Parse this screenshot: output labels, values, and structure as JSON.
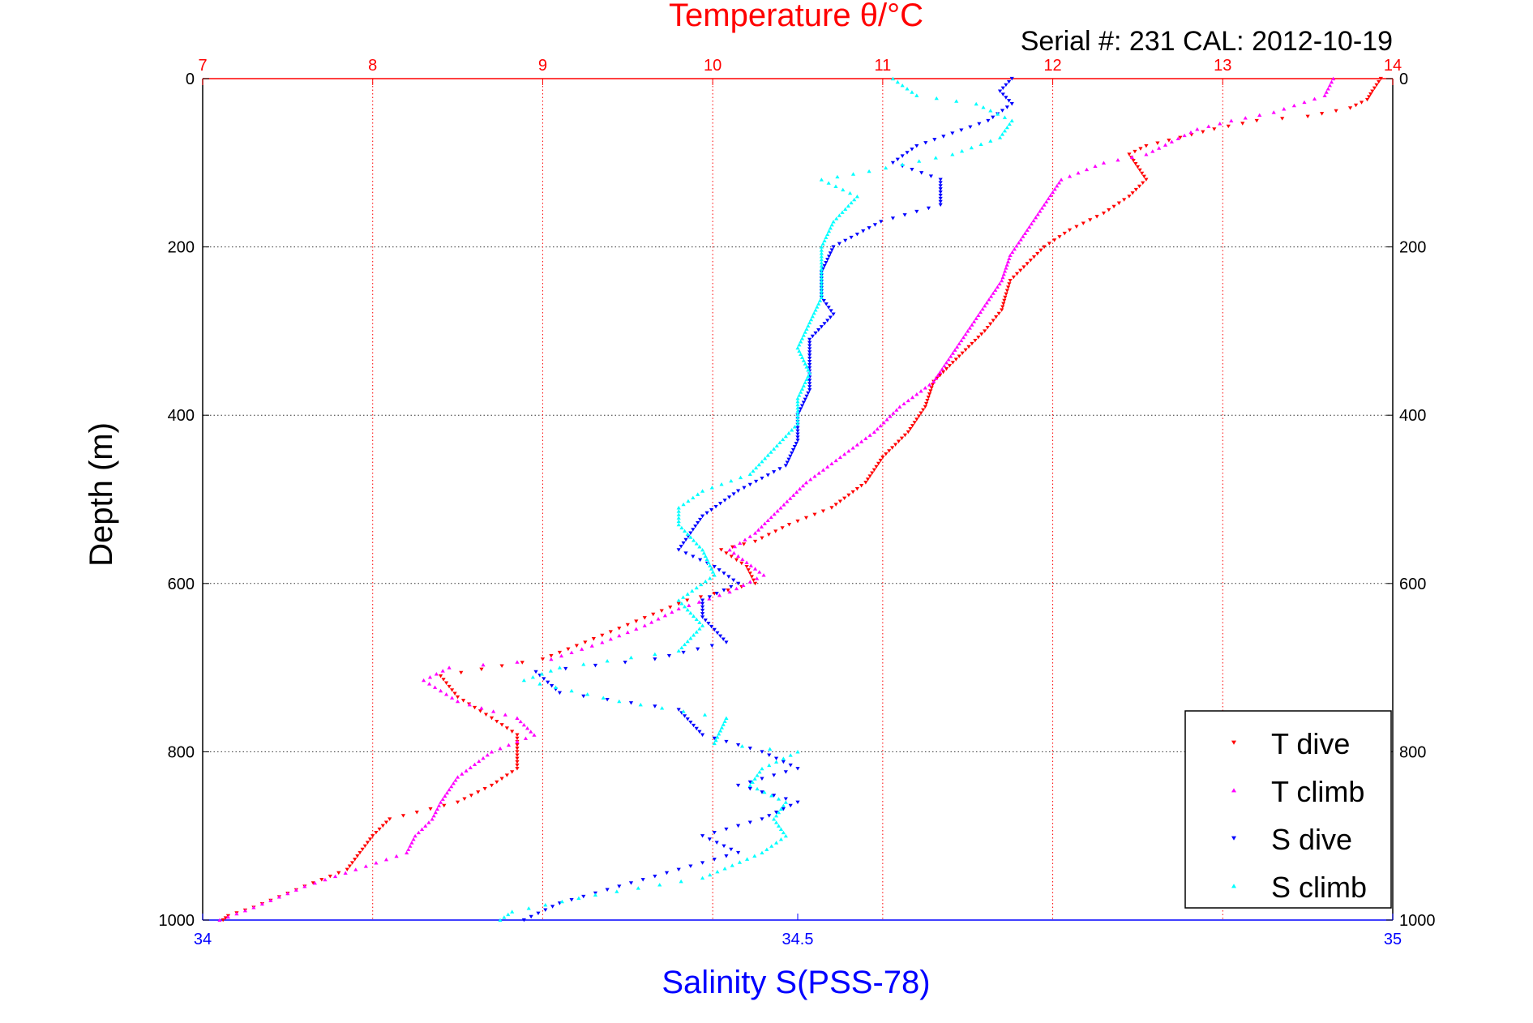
{
  "chart_data": {
    "type": "scatter",
    "title": "Temperature θ/°C",
    "subtitle": "Serial #: 231  CAL: 2012-10-19",
    "ylabel": "Depth (m)",
    "ylim": [
      0,
      1000
    ],
    "y_reversed": true,
    "y_ticks": [
      "0",
      "200",
      "400",
      "600",
      "800",
      "1000"
    ],
    "top_axis": {
      "label": "Temperature θ/°C",
      "lim": [
        7,
        14
      ],
      "ticks": [
        "7",
        "8",
        "9",
        "10",
        "11",
        "12",
        "13",
        "14"
      ],
      "color": "#ff0000"
    },
    "bottom_axis": {
      "label": "Salinity S(PSS-78)",
      "lim": [
        34,
        35
      ],
      "ticks": [
        "34",
        "34.5",
        "35"
      ],
      "color": "#0000ff"
    },
    "grid": true,
    "legend_position": "bottom-right",
    "series": [
      {
        "name": "T dive",
        "axis": "top",
        "color": "#ff0000",
        "marker": "triangle-down",
        "points": [
          [
            13.93,
            0
          ],
          [
            13.88,
            15
          ],
          [
            13.85,
            25
          ],
          [
            13.75,
            35
          ],
          [
            13.5,
            45
          ],
          [
            13.2,
            50
          ],
          [
            12.95,
            60
          ],
          [
            12.75,
            70
          ],
          [
            12.55,
            80
          ],
          [
            12.45,
            90
          ],
          [
            12.5,
            105
          ],
          [
            12.55,
            120
          ],
          [
            12.45,
            140
          ],
          [
            12.3,
            160
          ],
          [
            12.1,
            180
          ],
          [
            11.95,
            200
          ],
          [
            11.85,
            220
          ],
          [
            11.75,
            240
          ],
          [
            11.72,
            260
          ],
          [
            11.7,
            275
          ],
          [
            11.6,
            300
          ],
          [
            11.45,
            330
          ],
          [
            11.3,
            360
          ],
          [
            11.25,
            390
          ],
          [
            11.15,
            420
          ],
          [
            11.0,
            450
          ],
          [
            10.9,
            480
          ],
          [
            10.7,
            510
          ],
          [
            10.45,
            530
          ],
          [
            10.25,
            550
          ],
          [
            10.05,
            560
          ],
          [
            10.2,
            580
          ],
          [
            10.25,
            600
          ],
          [
            9.85,
            620
          ],
          [
            9.55,
            645
          ],
          [
            9.25,
            670
          ],
          [
            9.0,
            690
          ],
          [
            8.4,
            710
          ],
          [
            8.5,
            735
          ],
          [
            8.7,
            760
          ],
          [
            8.85,
            780
          ],
          [
            8.85,
            800
          ],
          [
            8.85,
            820
          ],
          [
            8.7,
            840
          ],
          [
            8.5,
            860
          ],
          [
            8.1,
            880
          ],
          [
            8.0,
            900
          ],
          [
            7.85,
            940
          ],
          [
            7.6,
            960
          ],
          [
            7.3,
            985
          ],
          [
            7.15,
            995
          ],
          [
            7.12,
            1000
          ]
        ]
      },
      {
        "name": "T climb",
        "axis": "top",
        "color": "#ff00ff",
        "marker": "triangle-up",
        "points": [
          [
            13.65,
            0
          ],
          [
            13.6,
            20
          ],
          [
            13.3,
            40
          ],
          [
            13.05,
            50
          ],
          [
            12.85,
            60
          ],
          [
            12.7,
            75
          ],
          [
            12.55,
            90
          ],
          [
            12.3,
            100
          ],
          [
            12.05,
            120
          ],
          [
            11.95,
            150
          ],
          [
            11.85,
            180
          ],
          [
            11.75,
            210
          ],
          [
            11.7,
            240
          ],
          [
            11.6,
            270
          ],
          [
            11.5,
            300
          ],
          [
            11.4,
            330
          ],
          [
            11.3,
            360
          ],
          [
            11.1,
            390
          ],
          [
            10.95,
            420
          ],
          [
            10.75,
            450
          ],
          [
            10.55,
            480
          ],
          [
            10.4,
            510
          ],
          [
            10.25,
            540
          ],
          [
            10.1,
            560
          ],
          [
            10.3,
            590
          ],
          [
            10.1,
            610
          ],
          [
            9.8,
            630
          ],
          [
            9.6,
            650
          ],
          [
            9.35,
            670
          ],
          [
            9.05,
            690
          ],
          [
            8.45,
            700
          ],
          [
            8.3,
            715
          ],
          [
            8.5,
            740
          ],
          [
            8.85,
            760
          ],
          [
            8.95,
            780
          ],
          [
            8.7,
            800
          ],
          [
            8.5,
            830
          ],
          [
            8.4,
            860
          ],
          [
            8.35,
            880
          ],
          [
            8.25,
            900
          ],
          [
            8.2,
            920
          ],
          [
            7.9,
            940
          ],
          [
            7.6,
            960
          ],
          [
            7.3,
            985
          ],
          [
            7.1,
            1000
          ]
        ]
      },
      {
        "name": "S dive",
        "axis": "bottom",
        "color": "#0000ff",
        "marker": "triangle-down",
        "points": [
          [
            34.68,
            0
          ],
          [
            34.67,
            15
          ],
          [
            34.68,
            30
          ],
          [
            34.66,
            50
          ],
          [
            34.6,
            80
          ],
          [
            34.58,
            100
          ],
          [
            34.62,
            120
          ],
          [
            34.62,
            150
          ],
          [
            34.57,
            170
          ],
          [
            34.53,
            200
          ],
          [
            34.52,
            230
          ],
          [
            34.52,
            260
          ],
          [
            34.53,
            280
          ],
          [
            34.51,
            310
          ],
          [
            34.51,
            340
          ],
          [
            34.51,
            370
          ],
          [
            34.5,
            400
          ],
          [
            34.5,
            430
          ],
          [
            34.49,
            460
          ],
          [
            34.45,
            490
          ],
          [
            34.42,
            520
          ],
          [
            34.41,
            540
          ],
          [
            34.4,
            560
          ],
          [
            34.43,
            580
          ],
          [
            34.45,
            600
          ],
          [
            34.42,
            620
          ],
          [
            34.42,
            640
          ],
          [
            34.44,
            670
          ],
          [
            34.38,
            690
          ],
          [
            34.28,
            705
          ],
          [
            34.3,
            730
          ],
          [
            34.4,
            750
          ],
          [
            34.42,
            780
          ],
          [
            34.47,
            800
          ],
          [
            34.5,
            820
          ],
          [
            34.45,
            840
          ],
          [
            34.5,
            860
          ],
          [
            34.47,
            880
          ],
          [
            34.42,
            900
          ],
          [
            34.45,
            920
          ],
          [
            34.4,
            940
          ],
          [
            34.35,
            960
          ],
          [
            34.3,
            980
          ],
          [
            34.27,
            1000
          ]
        ]
      },
      {
        "name": "S climb",
        "axis": "bottom",
        "color": "#00ffff",
        "marker": "triangle-up",
        "points": [
          [
            34.58,
            0
          ],
          [
            34.6,
            20
          ],
          [
            34.65,
            30
          ],
          [
            34.68,
            50
          ],
          [
            34.67,
            70
          ],
          [
            34.63,
            90
          ],
          [
            34.56,
            110
          ],
          [
            34.52,
            120
          ],
          [
            34.55,
            140
          ],
          [
            34.53,
            170
          ],
          [
            34.52,
            200
          ],
          [
            34.52,
            230
          ],
          [
            34.52,
            260
          ],
          [
            34.51,
            290
          ],
          [
            34.5,
            320
          ],
          [
            34.51,
            350
          ],
          [
            34.5,
            380
          ],
          [
            34.5,
            410
          ],
          [
            34.48,
            440
          ],
          [
            34.46,
            470
          ],
          [
            34.42,
            490
          ],
          [
            34.4,
            510
          ],
          [
            34.4,
            530
          ],
          [
            34.42,
            560
          ],
          [
            34.43,
            590
          ],
          [
            34.4,
            620
          ],
          [
            34.42,
            650
          ],
          [
            34.4,
            680
          ],
          [
            34.3,
            700
          ],
          [
            34.27,
            715
          ],
          [
            34.35,
            740
          ],
          [
            34.44,
            760
          ],
          [
            34.43,
            790
          ],
          [
            34.5,
            800
          ],
          [
            34.47,
            820
          ],
          [
            34.46,
            840
          ],
          [
            34.49,
            860
          ],
          [
            34.48,
            880
          ],
          [
            34.49,
            900
          ],
          [
            34.47,
            920
          ],
          [
            34.42,
            950
          ],
          [
            34.33,
            970
          ],
          [
            34.26,
            990
          ],
          [
            34.25,
            1000
          ]
        ]
      }
    ]
  }
}
